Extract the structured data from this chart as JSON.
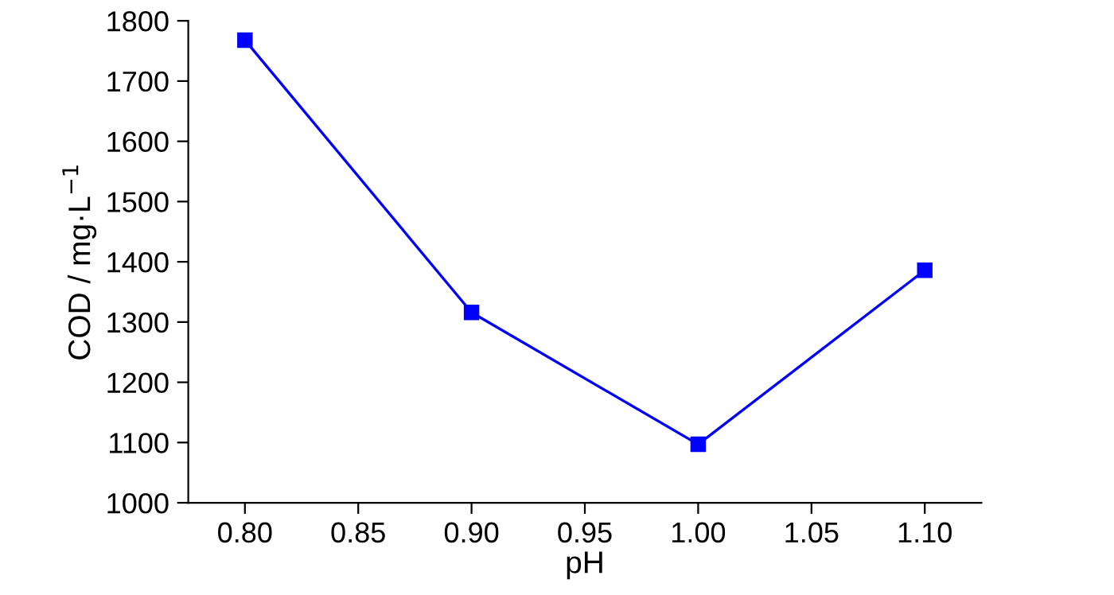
{
  "chart_data": {
    "type": "line",
    "xlabel": "pH",
    "ylabel": "COD / mg·L$^{−1}$",
    "x": [
      0.8,
      0.9,
      1.0,
      1.1
    ],
    "series": [
      {
        "color": "#0000ff",
        "values": [
          1768,
          1316,
          1097,
          1386
        ]
      }
    ],
    "xlim": [
      0.775,
      1.125
    ],
    "xticks": [
      {
        "value": 0.8,
        "label": "0.80"
      },
      {
        "value": 0.85,
        "label": "0.85"
      },
      {
        "value": 0.9,
        "label": "0.90"
      },
      {
        "value": 0.95,
        "label": "0.95"
      },
      {
        "value": 1.0,
        "label": "1.00"
      },
      {
        "value": 1.05,
        "label": "1.05"
      },
      {
        "value": 1.1,
        "label": "1.10"
      }
    ],
    "ylim": [
      1000,
      1800
    ],
    "yticks": [
      1000,
      1100,
      1200,
      1300,
      1400,
      1500,
      1600,
      1700,
      1800
    ],
    "marker": "square",
    "line_style": "solid",
    "grid": false,
    "legend": false
  }
}
